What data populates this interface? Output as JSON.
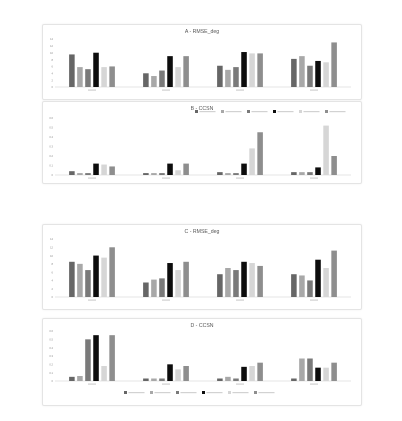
{
  "colors": {
    "series": [
      "#666666",
      "#a8a8a8",
      "#7a7a7a",
      "#0d0d0d",
      "#d6d6d6",
      "#8e8e8e"
    ],
    "axis": "#c9c9c9",
    "text": "#555555"
  },
  "chart_data": [
    {
      "type": "bar",
      "title": "A - RMSE_deg",
      "legend": "none",
      "grid": false,
      "categories": [
        "",
        "",
        "",
        ""
      ],
      "series": [
        {
          "values": [
            9.5,
            4.0,
            6.2,
            8.2
          ]
        },
        {
          "values": [
            5.8,
            3.2,
            5.0,
            9.0
          ]
        },
        {
          "values": [
            5.2,
            4.8,
            5.8,
            6.2
          ]
        },
        {
          "values": [
            10.0,
            9.0,
            10.2,
            7.6
          ]
        },
        {
          "values": [
            5.8,
            5.8,
            9.8,
            7.2
          ]
        },
        {
          "values": [
            6.0,
            9.0,
            9.8,
            13.0
          ]
        }
      ],
      "ylim": [
        0,
        14
      ],
      "yticks": [
        "14",
        "12",
        "10",
        "8",
        "6",
        "4",
        "2",
        "0"
      ]
    },
    {
      "type": "bar",
      "title": "B - CCSN",
      "legend": "top",
      "grid": false,
      "categories": [
        "",
        "",
        "",
        ""
      ],
      "series": [
        {
          "values": [
            0.04,
            0.02,
            0.03,
            0.03
          ]
        },
        {
          "values": [
            0.02,
            0.02,
            0.02,
            0.03
          ]
        },
        {
          "values": [
            0.02,
            0.02,
            0.02,
            0.03
          ]
        },
        {
          "values": [
            0.12,
            0.12,
            0.12,
            0.08
          ]
        },
        {
          "values": [
            0.11,
            0.05,
            0.28,
            0.52
          ]
        },
        {
          "values": [
            0.09,
            0.12,
            0.45,
            0.2
          ]
        }
      ],
      "ylim": [
        0,
        0.6
      ],
      "yticks": [
        "0.6",
        "0.5",
        "0.4",
        "0.3",
        "0.2",
        "0.1",
        "0"
      ]
    },
    {
      "type": "bar",
      "title": "C - RMSE_deg",
      "legend": "none",
      "grid": false,
      "categories": [
        "",
        "",
        "",
        ""
      ],
      "series": [
        {
          "values": [
            8.5,
            3.5,
            5.5,
            5.5
          ]
        },
        {
          "values": [
            8.0,
            4.2,
            7.0,
            5.2
          ]
        },
        {
          "values": [
            6.5,
            4.5,
            6.5,
            4.0
          ]
        },
        {
          "values": [
            10.0,
            8.2,
            8.5,
            9.0
          ]
        },
        {
          "values": [
            9.5,
            6.5,
            8.2,
            7.0
          ]
        },
        {
          "values": [
            12.0,
            8.5,
            7.5,
            11.2
          ]
        }
      ],
      "ylim": [
        0,
        14
      ],
      "yticks": [
        "14",
        "12",
        "10",
        "8",
        "6",
        "4",
        "2",
        "0"
      ]
    },
    {
      "type": "bar",
      "title": "D - CCSN",
      "legend": "bottom",
      "grid": false,
      "categories": [
        "",
        "",
        "",
        ""
      ],
      "series": [
        {
          "values": [
            0.05,
            0.03,
            0.03,
            0.03
          ]
        },
        {
          "values": [
            0.06,
            0.03,
            0.05,
            0.27
          ]
        },
        {
          "values": [
            0.5,
            0.03,
            0.03,
            0.27
          ]
        },
        {
          "values": [
            0.55,
            0.2,
            0.17,
            0.16
          ]
        },
        {
          "values": [
            0.18,
            0.14,
            0.18,
            0.16
          ]
        },
        {
          "values": [
            0.55,
            0.18,
            0.22,
            0.22
          ]
        }
      ],
      "ylim": [
        0,
        0.6
      ],
      "yticks": [
        "0.6",
        "0.5",
        "0.4",
        "0.3",
        "0.2",
        "0.1",
        "0"
      ]
    }
  ]
}
